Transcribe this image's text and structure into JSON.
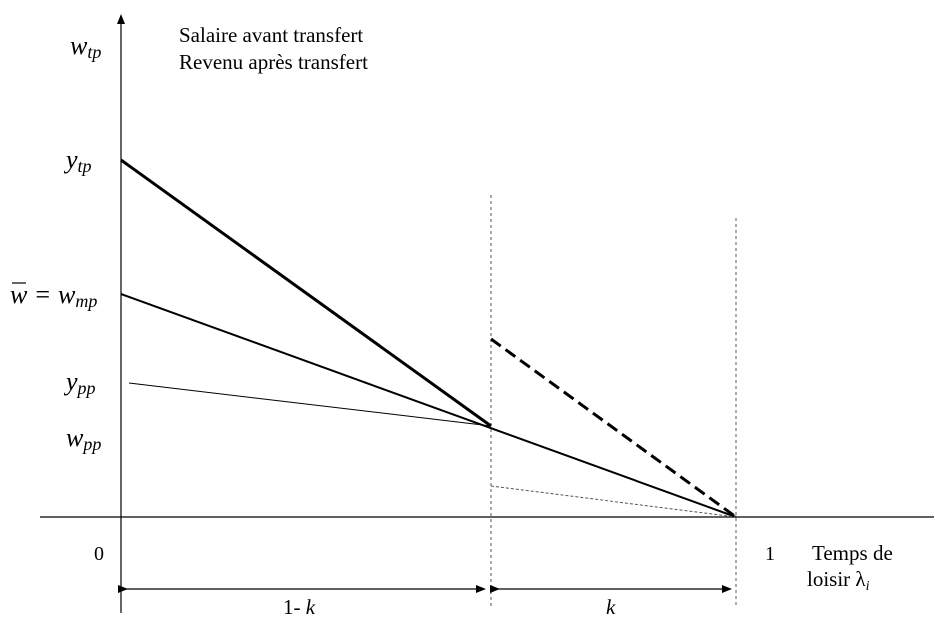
{
  "diagram": {
    "y_axis": {
      "labels": {
        "w_tp": {
          "base": "w",
          "sub": "tp"
        },
        "y_tp": {
          "base": "y",
          "sub": "tp"
        },
        "w_bar": {
          "bar": "w",
          "eq": "=",
          "base": "w",
          "sub": "mp"
        },
        "y_pp": {
          "base": "y",
          "sub": "pp"
        },
        "w_pp": {
          "base": "w",
          "sub": "pp"
        },
        "origin": "0"
      },
      "title_lines": [
        "Salaire avant transfert",
        "Revenu après transfert"
      ]
    },
    "x_axis": {
      "one": "1",
      "title_line1": "Temps de",
      "title_line2_text": "loisir ",
      "lambda": "λ",
      "lambda_sub": "i"
    },
    "intervals": {
      "left": {
        "prefix": "1- ",
        "var": "k"
      },
      "right": {
        "var": "k"
      }
    }
  }
}
